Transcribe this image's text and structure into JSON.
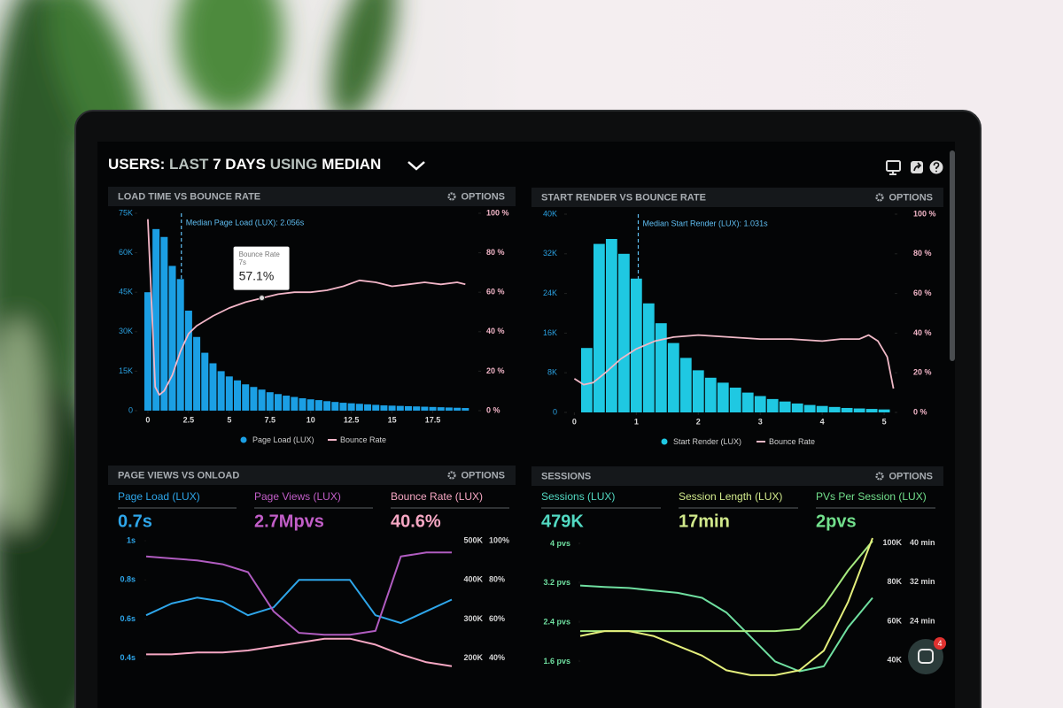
{
  "header": {
    "title_parts": [
      "USERS:",
      "LAST",
      "7 DAYS",
      "USING",
      "MEDIAN"
    ]
  },
  "chat": {
    "badge": 4
  },
  "chart_data": [
    {
      "type": "histogram",
      "title": "LOAD TIME VS BOUNCE RATE",
      "options": "OPTIONS",
      "bins": [
        -0.25,
        0.25,
        0.75,
        1.25,
        1.75,
        2.25,
        2.75,
        3.25,
        3.75,
        4.25,
        4.75,
        5.25,
        5.75,
        6.25,
        6.75,
        7.25,
        7.75,
        8.25,
        8.75,
        9.25,
        9.75,
        10.25,
        10.75,
        11.25,
        11.75,
        12.25,
        12.75,
        13.25,
        13.75,
        14.25,
        14.75,
        15.25,
        15.75,
        16.25,
        16.75,
        17.25,
        17.75,
        18.25,
        18.75,
        19.25,
        19.75
      ],
      "xlim": [
        -0.65,
        20.3
      ],
      "xticks": [
        0,
        2.5,
        5,
        7.5,
        10,
        12.5,
        15,
        17.5
      ],
      "ylim": [
        0,
        75000
      ],
      "yticks": [
        0,
        {
          "value": 15000,
          "label": "15K"
        },
        {
          "value": 30000,
          "label": "30K"
        },
        {
          "value": 45000,
          "label": "45K"
        },
        {
          "value": 60000,
          "label": "60K"
        },
        {
          "value": 75000,
          "label": "75K"
        }
      ],
      "y2lim": [
        0,
        100
      ],
      "y2ticks": [
        {
          "value": 0,
          "label": "0 %"
        },
        {
          "value": 20,
          "label": "20 %"
        },
        {
          "value": 40,
          "label": "40 %"
        },
        {
          "value": 60,
          "label": "60 %"
        },
        {
          "value": 80,
          "label": "80 %"
        },
        {
          "value": 100,
          "label": "100 %"
        }
      ],
      "series": [
        {
          "name": "Page Load (LUX)",
          "color": "#1b9fe4",
          "values": [
            45000,
            69000,
            66000,
            55000,
            50000,
            38000,
            28000,
            22000,
            18000,
            15000,
            13000,
            11500,
            10000,
            9000,
            8000,
            7000,
            6300,
            5700,
            5200,
            4700,
            4300,
            4000,
            3600,
            3300,
            3000,
            2800,
            2600,
            2400,
            2200,
            2000,
            1900,
            1800,
            1700,
            1600,
            1500,
            1400,
            1300,
            1200,
            1100,
            1000
          ]
        },
        {
          "name": "Bounce Rate",
          "color": "#f3b6c8",
          "axis": "y2",
          "x": [
            0,
            0.2,
            0.45,
            0.7,
            1,
            1.5,
            2,
            2.5,
            3,
            4,
            5,
            6,
            7,
            8,
            9,
            10,
            11,
            12,
            13,
            14,
            15,
            16,
            17,
            18,
            19,
            19.5
          ],
          "values": [
            97,
            60,
            12,
            8,
            10,
            18,
            30,
            39,
            43,
            48,
            52,
            55,
            57,
            59,
            60,
            60,
            61,
            63,
            66,
            65,
            63,
            64,
            65,
            64,
            65,
            64
          ]
        }
      ],
      "median": {
        "label": "Median Page Load (LUX): 2.056s",
        "value": 2.056
      },
      "tooltip": {
        "label": "Bounce Rate",
        "x": 7,
        "x_label": "7s",
        "value": 57.1,
        "value_label": "57.1%"
      }
    },
    {
      "type": "histogram",
      "title": "START RENDER VS BOUNCE RATE",
      "options": "OPTIONS",
      "bins": [
        0.1,
        0.3,
        0.5,
        0.7,
        0.9,
        1.1,
        1.3,
        1.5,
        1.7,
        1.9,
        2.1,
        2.3,
        2.5,
        2.7,
        2.9,
        3.1,
        3.3,
        3.5,
        3.7,
        3.9,
        4.1,
        4.3,
        4.5,
        4.7,
        4.9,
        5.1
      ],
      "xlim": [
        -0.12,
        5.17
      ],
      "xticks": [
        0,
        1,
        2,
        3,
        4,
        5
      ],
      "ylim": [
        0,
        40000
      ],
      "yticks": [
        0,
        {
          "value": 8000,
          "label": "8K"
        },
        {
          "value": 16000,
          "label": "16K"
        },
        {
          "value": 24000,
          "label": "24K"
        },
        {
          "value": 32000,
          "label": "32K"
        },
        {
          "value": 40000,
          "label": "40K"
        }
      ],
      "y2lim": [
        0,
        100
      ],
      "y2ticks": [
        {
          "value": 0,
          "label": "0 %"
        },
        {
          "value": 20,
          "label": "20 %"
        },
        {
          "value": 40,
          "label": "40 %"
        },
        {
          "value": 60,
          "label": "60 %"
        },
        {
          "value": 80,
          "label": "80 %"
        },
        {
          "value": 100,
          "label": "100 %"
        }
      ],
      "series": [
        {
          "name": "Start Render (LUX)",
          "color": "#1fc8e2",
          "values": [
            13000,
            34000,
            35000,
            32000,
            27000,
            22000,
            18000,
            14000,
            11000,
            8500,
            7000,
            6000,
            5000,
            4000,
            3300,
            2700,
            2200,
            1800,
            1500,
            1300,
            1100,
            900,
            800,
            700,
            600
          ]
        },
        {
          "name": "Bounce Rate",
          "color": "#f0b9c7",
          "axis": "y2",
          "x": [
            0,
            0.15,
            0.3,
            0.5,
            0.75,
            1,
            1.3,
            1.6,
            2,
            2.5,
            3,
            3.5,
            4,
            4.3,
            4.6,
            4.75,
            4.9,
            5.05,
            5.15
          ],
          "values": [
            17,
            14,
            15,
            20,
            27,
            32,
            36,
            38,
            39,
            38,
            37,
            37,
            36,
            37,
            37,
            39,
            36,
            28,
            12
          ]
        }
      ],
      "median": {
        "label": "Median Start Render (LUX): 1.031s",
        "value": 1.031
      }
    },
    {
      "type": "line",
      "title": "PAGE VIEWS VS ONLOAD",
      "options": "OPTIONS",
      "metrics": [
        {
          "label": "Page Load (LUX)",
          "value": "0.7s",
          "color": "#2ea6ea"
        },
        {
          "label": "Page Views (LUX)",
          "value": "2.7Mpvs",
          "color": "#c25ec8"
        },
        {
          "label": "Bounce Rate (LUX)",
          "value": "40.6%",
          "color": "#f6a7c3"
        }
      ],
      "ylim": [
        0.3,
        1.05
      ],
      "yticks": [
        {
          "value": 1,
          "label": "1s"
        },
        {
          "value": 0.8,
          "label": "0.8s"
        },
        {
          "value": 0.6,
          "label": "0.6s"
        },
        {
          "value": 0.4,
          "label": "0.4s"
        }
      ],
      "y2lim": [
        150000,
        525000
      ],
      "y2ticks": [
        {
          "value": 500000,
          "label": "500K"
        },
        {
          "value": 400000,
          "label": "400K"
        },
        {
          "value": 300000,
          "label": "300K"
        },
        {
          "value": 200000,
          "label": "200K"
        }
      ],
      "y3lim": [
        30,
        105
      ],
      "y3ticks": [
        {
          "value": 100,
          "label": "100%"
        },
        {
          "value": 80,
          "label": "80%"
        },
        {
          "value": 60,
          "label": "60%"
        },
        {
          "value": 40,
          "label": "40%"
        }
      ],
      "series": [
        {
          "color": "#2ea6ea",
          "values": [
            0.62,
            0.68,
            0.71,
            0.69,
            0.62,
            0.66,
            0.8,
            0.8,
            0.8,
            0.62,
            0.58,
            0.64,
            0.7
          ]
        },
        {
          "color": "#b05cc0",
          "axis": "y2",
          "values": [
            460000,
            455000,
            450000,
            440000,
            420000,
            320000,
            265000,
            260000,
            260000,
            270000,
            460000,
            470000,
            470000
          ]
        },
        {
          "color": "#f6a7c3",
          "axis": "y3",
          "values": [
            42,
            42,
            43,
            43,
            44,
            46,
            48,
            50,
            50,
            47,
            42,
            38,
            36
          ]
        }
      ]
    },
    {
      "type": "line",
      "title": "SESSIONS",
      "options": "OPTIONS",
      "metrics": [
        {
          "label": "Sessions (LUX)",
          "value": "479K",
          "color": "#52d9c2"
        },
        {
          "label": "Session Length (LUX)",
          "value": "17min",
          "color": "#d2ea8c"
        },
        {
          "label": "PVs Per Session (LUX)",
          "value": "2pvs",
          "color": "#72e08c"
        }
      ],
      "ylim": [
        1.3,
        4.3
      ],
      "yticks": [
        {
          "value": 4,
          "label": "4 pvs"
        },
        {
          "value": 3.2,
          "label": "3.2 pvs"
        },
        {
          "value": 2.4,
          "label": "2.4 pvs"
        },
        {
          "value": 1.6,
          "label": "1.6 pvs"
        }
      ],
      "y2lim": [
        32000,
        107000
      ],
      "y2ticks": [
        {
          "value": 100000,
          "label": "100K"
        },
        {
          "value": 80000,
          "label": "80K"
        },
        {
          "value": 60000,
          "label": "60K"
        },
        {
          "value": 40000,
          "label": "40K"
        }
      ],
      "y3lim": [
        12.8,
        42.8
      ],
      "y3ticks": [
        {
          "value": 40,
          "label": "40 min"
        },
        {
          "value": 32,
          "label": "32 min"
        },
        {
          "value": 24,
          "label": "24 min"
        }
      ],
      "series": [
        {
          "color": "#6fdfa0",
          "values": [
            3.15,
            3.12,
            3.1,
            3.05,
            3.0,
            2.9,
            2.6,
            2.1,
            1.6,
            1.4,
            1.5,
            2.3,
            2.9
          ]
        },
        {
          "color": "#a6ea80",
          "axis": "y2",
          "values": [
            55000,
            55000,
            55000,
            55000,
            55000,
            55000,
            55000,
            55000,
            55000,
            56000,
            68000,
            86000,
            101000
          ]
        },
        {
          "color": "#e4ef7c",
          "axis": "y3",
          "values": [
            21,
            22,
            22,
            21,
            19,
            17,
            14,
            13,
            13,
            14,
            18,
            28,
            41
          ]
        }
      ]
    }
  ]
}
